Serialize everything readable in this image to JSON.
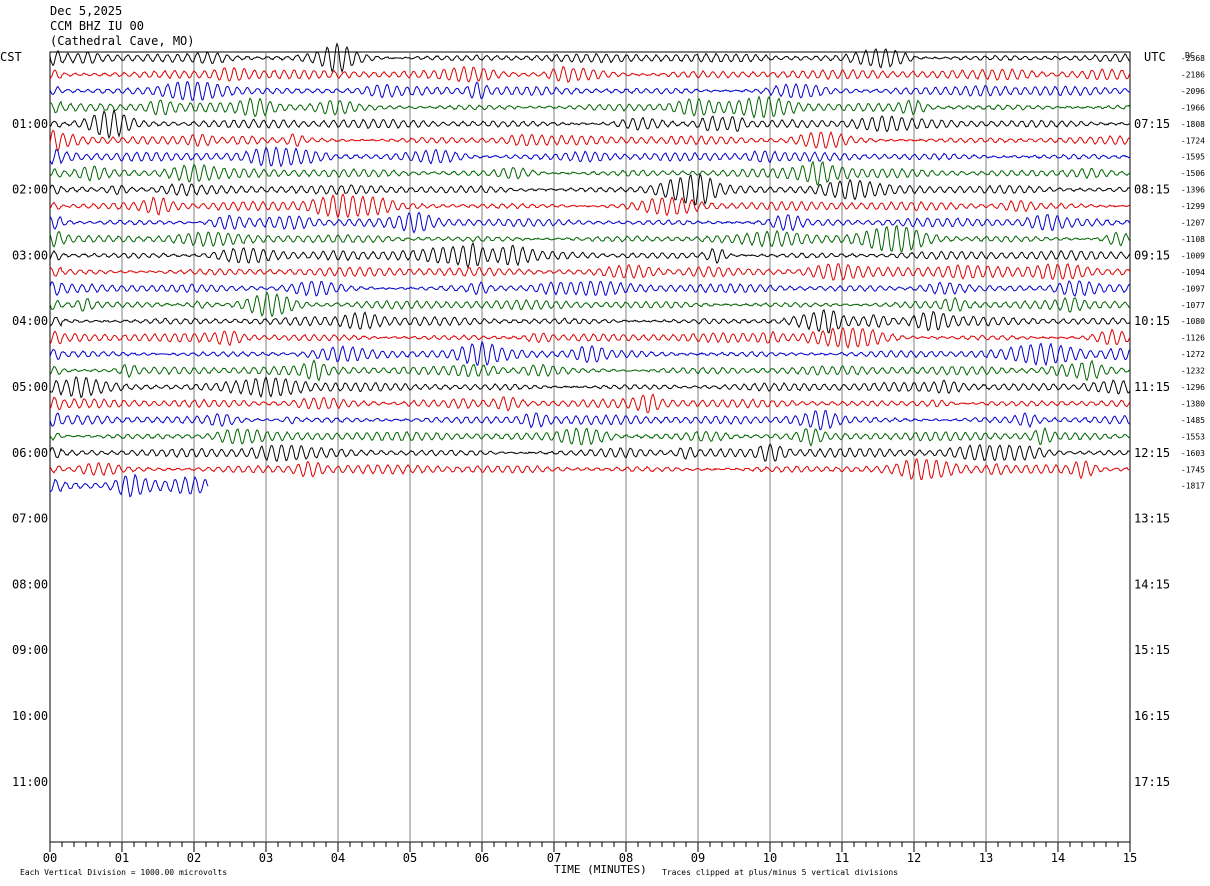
{
  "header": {
    "date": "Dec 5,2025",
    "station": "CCM BHZ IU 00",
    "location": "(Cathedral Cave, MO)"
  },
  "left_zone": "CST",
  "right_zone": "UTC",
  "dc_header": "DC",
  "footer": {
    "left": "Each Vertical Division = 1000.00 microvolts",
    "center": "TIME (MINUTES)",
    "right": "Traces clipped at plus/minus 5 vertical divisions"
  },
  "colors": {
    "cycle": [
      "#000000",
      "#dd0000",
      "#0000cc",
      "#006400"
    ],
    "grid": "#808080"
  },
  "chart_data": {
    "type": "line",
    "xlabel": "TIME (MINUTES)",
    "xlim": [
      0,
      15
    ],
    "x_ticks": [
      "00",
      "01",
      "02",
      "03",
      "04",
      "05",
      "06",
      "07",
      "08",
      "09",
      "10",
      "11",
      "12",
      "13",
      "14",
      "15"
    ],
    "hour_labels_left": [
      "01:00",
      "02:00",
      "03:00",
      "04:00",
      "05:00",
      "06:00",
      "07:00",
      "08:00",
      "09:00",
      "10:00",
      "11:00"
    ],
    "hour_labels_right": [
      "07:15",
      "08:15",
      "09:15",
      "10:15",
      "11:15",
      "12:15",
      "13:15",
      "14:15",
      "15:15",
      "16:15",
      "17:15"
    ],
    "trace_minutes_per_line": 15,
    "dc_offsets": [
      "-2368",
      "-2186",
      "-2096",
      "-1966",
      "-1808",
      "-1724",
      "-1595",
      "-1506",
      "-1396",
      "-1299",
      "-1207",
      "-1108",
      "-1009",
      "-1094",
      "-1097",
      "-1077",
      "-1080",
      "-1126",
      "-1272",
      "-1232",
      "-1296",
      "-1380",
      "-1485",
      "-1553",
      "-1603",
      "-1745",
      "-1817"
    ],
    "last_trace_end_minute": 2.2
  }
}
